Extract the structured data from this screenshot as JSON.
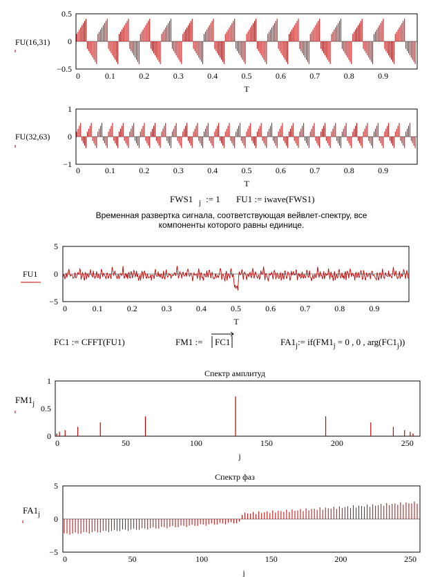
{
  "charts": {
    "fu16": {
      "ylabel": "FU(16,31)",
      "xlabel": "T",
      "yticks": [
        "0.5",
        "0",
        "−0.5"
      ],
      "xticks": [
        "0",
        "0.1",
        "0.2",
        "0.3",
        "0.4",
        "0.5",
        "0.6",
        "0.7",
        "0.8",
        "0.9"
      ]
    },
    "fu32": {
      "ylabel": "FU(32,63)",
      "xlabel": "T",
      "yticks": [
        "1",
        "0",
        "−1"
      ],
      "xticks": [
        "0",
        "0.1",
        "0.2",
        "0.3",
        "0.4",
        "0.5",
        "0.6",
        "0.7",
        "0.8",
        "0.9"
      ]
    },
    "fu1": {
      "ylabel": "FU1",
      "xlabel": "T",
      "yticks": [
        "5",
        "0",
        "−5"
      ],
      "xticks": [
        "0",
        "0.1",
        "0.2",
        "0.3",
        "0.4",
        "0.5",
        "0.6",
        "0.7",
        "0.8",
        "0.9"
      ]
    },
    "fm1": {
      "title": "Спектр амплитуд",
      "ylabel": "FM1",
      "ylabel_sub": "j",
      "xlabel": "j",
      "yticks": [
        "1",
        "0.5",
        "0"
      ],
      "xticks": [
        "0",
        "50",
        "100",
        "150",
        "200",
        "250"
      ]
    },
    "fa1": {
      "title": "Спектр фаз",
      "ylabel": "FA1",
      "ylabel_sub": "j",
      "xlabel": "j",
      "yticks": [
        "5",
        "0",
        "−5"
      ],
      "xticks": [
        "0",
        "50",
        "100",
        "150",
        "200",
        "250"
      ]
    }
  },
  "formulas": {
    "fws1_left": "FWS1",
    "fws1_sub": "j",
    "fws1_right": ":= 1",
    "fu1_def": "FU1 := iwave(FWS1)",
    "fc1_def": "FC1 := CFFT(FU1)",
    "fm1_lhs": "FM1 :=",
    "fm1_arg": "FC1",
    "fa1_lhs": "FA1",
    "fa1_lhs_sub": "j",
    "fa1_mid": ":= if(FM1",
    "fa1_mid_sub": "j",
    "fa1_eq": " = 0 , 0 , arg(FC1",
    "fa1_end_sub": "j",
    "fa1_close": "))"
  },
  "caption": "Временная развертка сигнала, соответствующая вейвлет-спектру, все компоненты которого равны единице.",
  "chart_data": [
    {
      "type": "line",
      "name_of_plot": "FU(16,31) vs T",
      "x_range": [
        0,
        1
      ],
      "ylim": [
        -0.5,
        0.5
      ],
      "pattern": "16 periodic wavelet bursts, peak ≈0.45, trough ≈-0.45"
    },
    {
      "type": "line",
      "name_of_plot": "FU(32,63) vs T",
      "x_range": [
        0,
        1
      ],
      "ylim": [
        -1,
        1
      ],
      "pattern": "32 periodic wavelet bursts, peak ≈0.6, trough ≈-0.5"
    },
    {
      "type": "line",
      "name_of_plot": "FU1 vs T",
      "x_range": [
        0,
        1
      ],
      "ylim": [
        -5,
        5
      ],
      "pattern": "noisy signal around 0 with periodic negative dips, amplitude ≈1.5, dip at 0.5 ≈ -3"
    },
    {
      "type": "bar",
      "name_of_plot": "Спектр амплитуд",
      "x_range": [
        0,
        255
      ],
      "ylim": [
        0,
        1
      ],
      "peaks": [
        {
          "x": 1,
          "y": 0.05
        },
        {
          "x": 3,
          "y": 0.08
        },
        {
          "x": 7,
          "y": 0.11
        },
        {
          "x": 16,
          "y": 0.17
        },
        {
          "x": 32,
          "y": 0.25
        },
        {
          "x": 64,
          "y": 0.36
        },
        {
          "x": 128,
          "y": 0.72
        },
        {
          "x": 192,
          "y": 0.36
        },
        {
          "x": 224,
          "y": 0.25
        },
        {
          "x": 240,
          "y": 0.17
        },
        {
          "x": 248,
          "y": 0.11
        },
        {
          "x": 252,
          "y": 0.08
        },
        {
          "x": 254,
          "y": 0.05
        }
      ]
    },
    {
      "type": "bar",
      "name_of_plot": "Спектр фаз",
      "x_range": [
        0,
        255
      ],
      "ylim": [
        -5,
        5
      ],
      "pattern": "j 0–127: ≈ -2.3 rising to ≈ -0.5; j 128–255: ≈ 0.8 rising to ≈ 2.5"
    }
  ]
}
